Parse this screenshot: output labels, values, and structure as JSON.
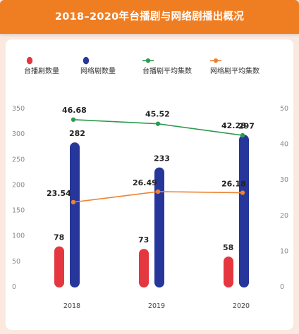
{
  "header": {
    "title": "2018–2020年台播剧与网络剧播出概况"
  },
  "colors": {
    "header": "#ef7d22",
    "background": "#fbe9df",
    "tv_bar": "#e5373f",
    "web_bar": "#27369a",
    "tv_line": "#2e9a4f",
    "web_line": "#ee8232"
  },
  "chart_data": {
    "type": "bar",
    "categories": [
      "2018",
      "2019",
      "2020"
    ],
    "series": [
      {
        "name": "台播剧数量",
        "type": "bar",
        "axis": "left",
        "values": [
          78,
          73,
          58
        ]
      },
      {
        "name": "网络剧数量",
        "type": "bar",
        "axis": "left",
        "values": [
          282,
          233,
          297
        ]
      },
      {
        "name": "台播剧平均集数",
        "type": "line",
        "axis": "right",
        "values": [
          46.68,
          45.52,
          42.28
        ]
      },
      {
        "name": "网络剧平均集数",
        "type": "line",
        "axis": "right",
        "values": [
          23.54,
          26.49,
          26.18
        ]
      }
    ],
    "y_left": {
      "min": 0,
      "max": 350,
      "ticks": [
        "0",
        "50",
        "100",
        "150",
        "200",
        "250",
        "300",
        "350"
      ]
    },
    "y_right": {
      "min": 0,
      "max": 50,
      "ticks": [
        "0",
        "10",
        "20",
        "30",
        "40",
        "50"
      ]
    },
    "data_labels": {
      "tv_count": [
        "78",
        "73",
        "58"
      ],
      "web_count": [
        "282",
        "233",
        "297"
      ],
      "tv_avg": [
        "46.68",
        "45.52",
        "42.28"
      ],
      "web_avg": [
        "23.54",
        "26.49",
        "26.18"
      ]
    },
    "grid": false,
    "legend_position": "top"
  }
}
